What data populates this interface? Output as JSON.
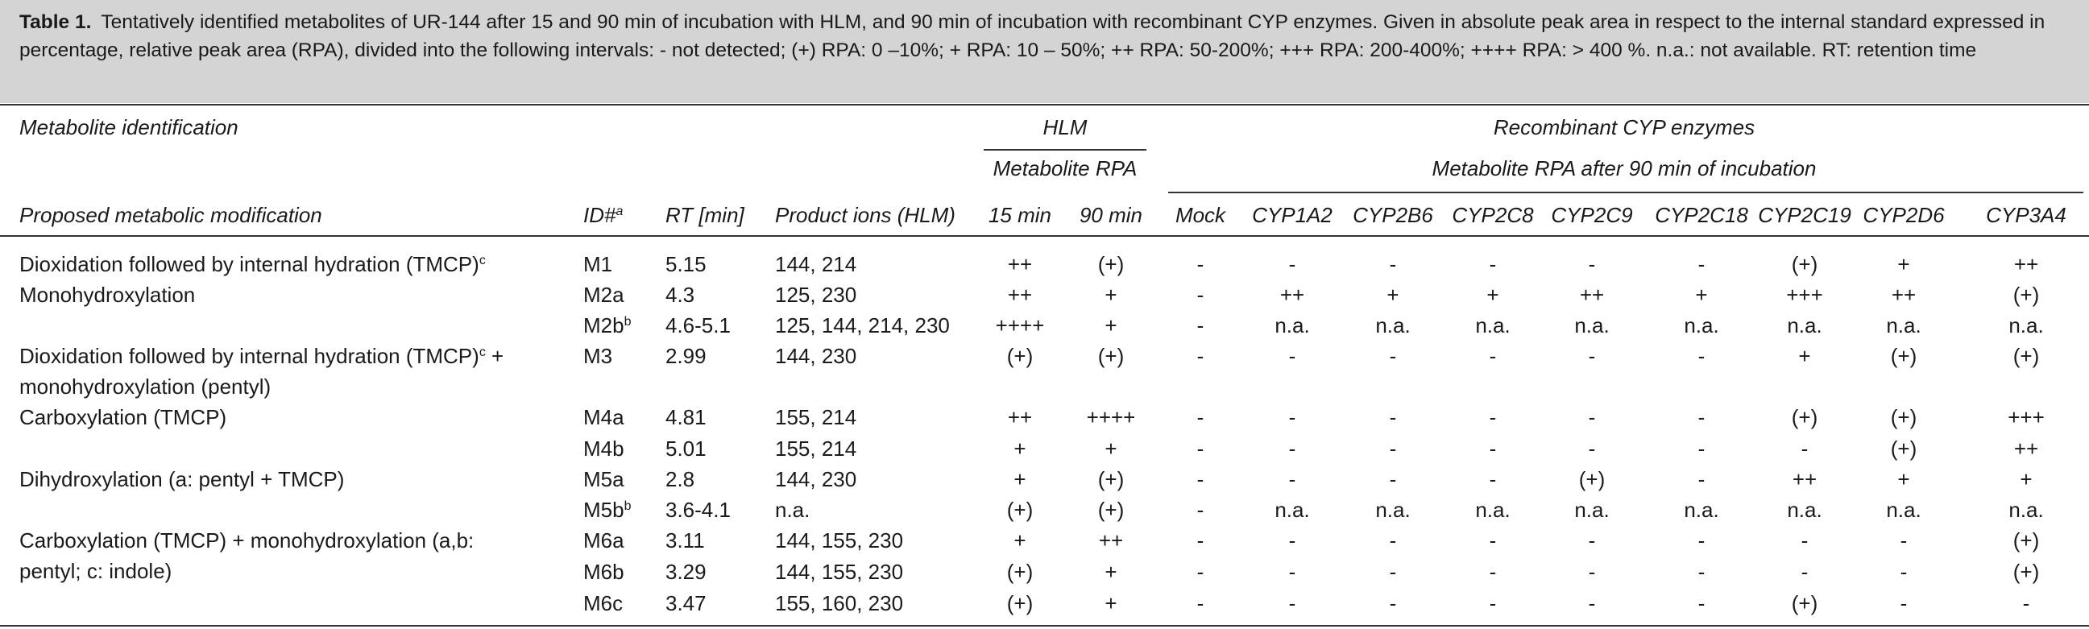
{
  "caption": {
    "label": "Table 1.",
    "text": "Tentatively identified metabolites of UR-144 after 15 and 90 min of incubation with HLM, and 90 min of incubation with recombinant CYP enzymes. Given in absolute peak area in respect to the internal standard expressed in percentage, relative peak area (RPA), divided into the following intervals: - not detected; (+) RPA: 0 –10%; + RPA: 10 – 50%; ++ RPA: 50-200%; +++ RPA: 200-400%; ++++ RPA: > 400 %. n.a.: not available. RT: retention time"
  },
  "header": {
    "metabolite_identification": "Metabolite identification",
    "hlm": "HLM",
    "hlm_sub": "Metabolite RPA",
    "recombinant": "Recombinant CYP enzymes",
    "recombinant_sub": "Metabolite RPA after 90 min of incubation",
    "proposed": "Proposed metabolic modification",
    "id": "ID#",
    "id_sup": "a",
    "rt": "RT [min]",
    "ions": "Product ions (HLM)",
    "min15": "15 min",
    "min90": "90 min",
    "enzymes": [
      "Mock",
      "CYP1A2",
      "CYP2B6",
      "CYP2C8",
      "CYP2C9",
      "CYP2C18",
      "CYP2C19",
      "CYP2D6",
      "CYP3A4"
    ]
  },
  "rows": [
    {
      "mod": "Dioxidation followed by internal hydration (TMCP)",
      "mod_sup": "c",
      "mod2": "",
      "id": "M1",
      "id_sup": "",
      "rt": "5.15",
      "ions": "144, 214",
      "m15": "++",
      "m90": "(+)",
      "cyp": [
        "-",
        "-",
        "-",
        "-",
        "-",
        "-",
        "(+)",
        "+",
        "++"
      ]
    },
    {
      "mod": "Monohydroxylation",
      "mod_sup": "",
      "mod2": "",
      "id": "M2a",
      "id_sup": "",
      "rt": "4.3",
      "ions": "125, 230",
      "m15": "++",
      "m90": "+",
      "cyp": [
        "-",
        "++",
        "+",
        "+",
        "++",
        "+",
        "+++",
        "++",
        "(+)"
      ]
    },
    {
      "mod": "",
      "mod_sup": "",
      "mod2": "",
      "id": "M2b",
      "id_sup": "b",
      "rt": "4.6-5.1",
      "ions": "125, 144, 214, 230",
      "m15": "++++",
      "m90": "+",
      "cyp": [
        "-",
        "n.a.",
        "n.a.",
        "n.a.",
        "n.a.",
        "n.a.",
        "n.a.",
        "n.a.",
        "n.a."
      ]
    },
    {
      "mod": "Dioxidation followed by internal hydration (TMCP)",
      "mod_sup": "c",
      "mod_after": " +",
      "mod2": "monohydroxylation (pentyl)",
      "id": "M3",
      "id_sup": "",
      "rt": "2.99",
      "ions": "144, 230",
      "m15": "(+)",
      "m90": "(+)",
      "cyp": [
        "-",
        "-",
        "-",
        "-",
        "-",
        "-",
        "+",
        "(+)",
        "(+)"
      ]
    },
    {
      "mod": "Carboxylation (TMCP)",
      "mod_sup": "",
      "mod2": "",
      "id": "M4a",
      "id_sup": "",
      "rt": "4.81",
      "ions": "155, 214",
      "m15": "++",
      "m90": "++++",
      "cyp": [
        "-",
        "-",
        "-",
        "-",
        "-",
        "-",
        "(+)",
        "(+)",
        "+++"
      ]
    },
    {
      "mod": "",
      "mod_sup": "",
      "mod2": "",
      "id": "M4b",
      "id_sup": "",
      "rt": "5.01",
      "ions": "155, 214",
      "m15": "+",
      "m90": "+",
      "cyp": [
        "-",
        "-",
        "-",
        "-",
        "-",
        "-",
        "-",
        "(+)",
        "++"
      ]
    },
    {
      "mod": "Dihydroxylation (a: pentyl + TMCP)",
      "mod_sup": "",
      "mod2": "",
      "id": "M5a",
      "id_sup": "",
      "rt": "2.8",
      "ions": "144, 230",
      "m15": "+",
      "m90": "(+)",
      "cyp": [
        "-",
        "-",
        "-",
        "-",
        "(+)",
        "-",
        "++",
        "+",
        "+"
      ]
    },
    {
      "mod": "",
      "mod_sup": "",
      "mod2": "",
      "id": "M5b",
      "id_sup": "b",
      "rt": "3.6-4.1",
      "ions": "n.a.",
      "m15": "(+)",
      "m90": "(+)",
      "cyp": [
        "-",
        "n.a.",
        "n.a.",
        "n.a.",
        "n.a.",
        "n.a.",
        "n.a.",
        "n.a.",
        "n.a."
      ]
    },
    {
      "mod": "Carboxylation (TMCP) + monohydroxylation (a,b:",
      "mod_sup": "",
      "mod2": "pentyl; c: indole)",
      "id": "M6a",
      "id_sup": "",
      "rt": "3.11",
      "ions": "144, 155, 230",
      "m15": "+",
      "m90": "++",
      "cyp": [
        "-",
        "-",
        "-",
        "-",
        "-",
        "-",
        "-",
        "-",
        "(+)"
      ]
    },
    {
      "mod": "",
      "mod_sup": "",
      "mod2": "",
      "id": "M6b",
      "id_sup": "",
      "rt": "3.29",
      "ions": "144, 155, 230",
      "m15": "(+)",
      "m90": "+",
      "cyp": [
        "-",
        "-",
        "-",
        "-",
        "-",
        "-",
        "-",
        "-",
        "(+)"
      ]
    },
    {
      "mod": "",
      "mod_sup": "",
      "mod2": "",
      "id": "M6c",
      "id_sup": "",
      "rt": "3.47",
      "ions": "155, 160, 230",
      "m15": "(+)",
      "m90": "+",
      "cyp": [
        "-",
        "-",
        "-",
        "-",
        "-",
        "-",
        "(+)",
        "-",
        "-"
      ]
    }
  ]
}
